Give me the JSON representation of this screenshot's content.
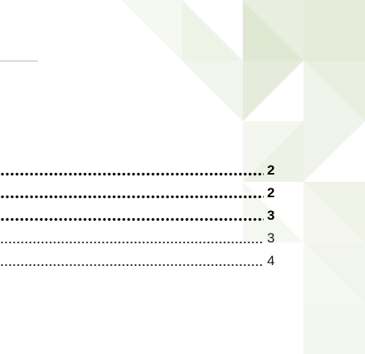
{
  "toc": {
    "entries": [
      {
        "page": 2,
        "bold": true
      },
      {
        "page": 2,
        "bold": true
      },
      {
        "page": 3,
        "bold": true
      },
      {
        "page": 3,
        "bold": false
      },
      {
        "page": 4,
        "bold": false
      }
    ]
  }
}
